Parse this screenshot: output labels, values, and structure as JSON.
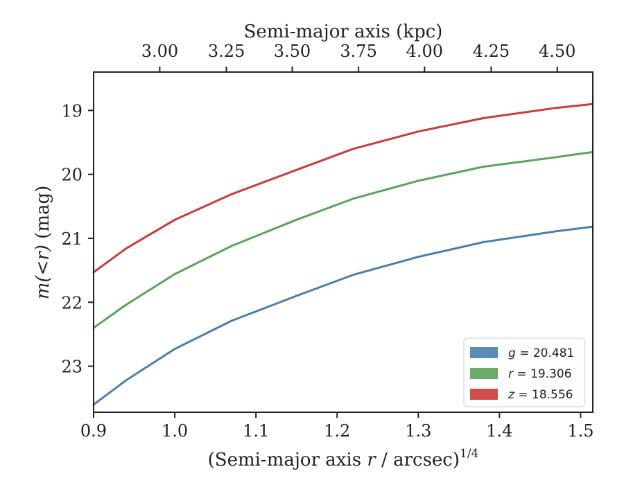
{
  "chart_data": {
    "type": "line",
    "xlabel_prefix": "(Semi-major axis ",
    "xlabel_var": "r",
    "xlabel_suffix": " / arcsec)",
    "xlabel_exp": "1/4",
    "x2label": "Semi-major axis (kpc)",
    "ylabel_pre": "m",
    "ylabel_math": "(<r)",
    "ylabel_unit": " (mag)",
    "xlim": [
      0.9,
      1.515
    ],
    "ylim": [
      23.72,
      18.4
    ],
    "y_inverted": true,
    "xticks": [
      "0.9",
      "1.0",
      "1.1",
      "1.2",
      "1.3",
      "1.4",
      "1.5"
    ],
    "yticks": [
      "19",
      "20",
      "21",
      "22",
      "23"
    ],
    "x2ticks": [
      {
        "label": "3.00",
        "at_x": 0.9815
      },
      {
        "label": "3.25",
        "at_x": 1.0636
      },
      {
        "label": "3.50",
        "at_x": 1.1447
      },
      {
        "label": "3.75",
        "at_x": 1.2264
      },
      {
        "label": "4.00",
        "at_x": 1.3077
      },
      {
        "label": "4.25",
        "at_x": 1.3898
      },
      {
        "label": "4.50",
        "at_x": 1.4712
      }
    ],
    "grid": false,
    "legend_position": "lower-right",
    "series": [
      {
        "name_var": "g",
        "name_value": "= 20.481",
        "color": "#4a7eb0",
        "x": [
          0.9,
          0.94,
          1.0,
          1.07,
          1.15,
          1.22,
          1.3,
          1.38,
          1.47,
          1.515
        ],
        "y": [
          23.6,
          23.22,
          22.73,
          22.29,
          21.9,
          21.57,
          21.29,
          21.06,
          20.89,
          20.82
        ]
      },
      {
        "name_var": "r",
        "name_value": "= 19.306",
        "color": "#5aa35a",
        "x": [
          0.9,
          0.94,
          1.0,
          1.07,
          1.15,
          1.22,
          1.3,
          1.38,
          1.47,
          1.515
        ],
        "y": [
          22.4,
          22.04,
          21.56,
          21.12,
          20.71,
          20.38,
          20.1,
          19.88,
          19.73,
          19.65
        ]
      },
      {
        "name_var": "z",
        "name_value": "= 18.556",
        "color": "#cc3a3a",
        "x": [
          0.9,
          0.94,
          1.0,
          1.07,
          1.15,
          1.22,
          1.3,
          1.38,
          1.47,
          1.515
        ],
        "y": [
          21.53,
          21.16,
          20.71,
          20.31,
          19.93,
          19.6,
          19.33,
          19.12,
          18.96,
          18.9
        ]
      }
    ]
  }
}
